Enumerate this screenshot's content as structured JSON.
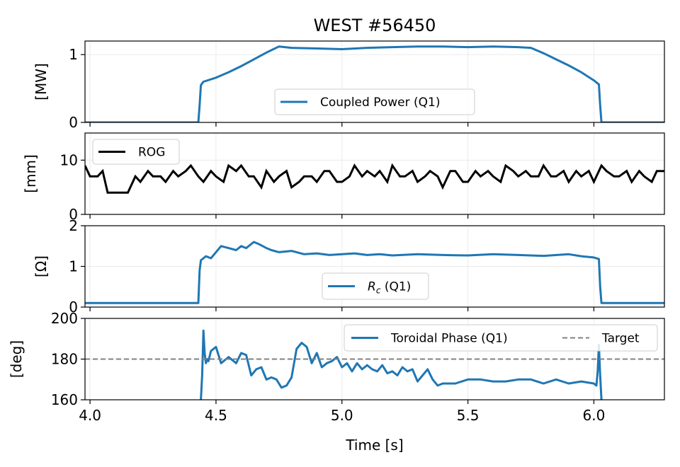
{
  "figure": {
    "title": "WEST #56450",
    "xlabel": "Time [s]"
  },
  "chart_data": [
    {
      "type": "line",
      "ylabel": "[MW]",
      "xlim": [
        3.98,
        6.28
      ],
      "ylim": [
        0,
        1.2
      ],
      "yticks": [
        "0",
        "1"
      ],
      "ytick_values": [
        0,
        1
      ],
      "grid": true,
      "legend": {
        "placement": "lower-center",
        "entries": [
          {
            "label": "Coupled Power (Q1)",
            "color": "#1f77b4",
            "style": "solid"
          }
        ]
      },
      "series": [
        {
          "name": "Coupled Power (Q1)",
          "color": "#1f77b4",
          "x": [
            3.98,
            4.43,
            4.435,
            4.44,
            4.45,
            4.5,
            4.55,
            4.6,
            4.65,
            4.7,
            4.75,
            4.8,
            4.9,
            5.0,
            5.1,
            5.2,
            5.3,
            5.4,
            5.5,
            5.6,
            5.7,
            5.75,
            5.8,
            5.85,
            5.9,
            5.95,
            6.0,
            6.02,
            6.025,
            6.03,
            6.28
          ],
          "y": [
            0,
            0,
            0.25,
            0.55,
            0.6,
            0.66,
            0.74,
            0.83,
            0.93,
            1.03,
            1.12,
            1.1,
            1.09,
            1.08,
            1.1,
            1.11,
            1.12,
            1.12,
            1.11,
            1.12,
            1.11,
            1.1,
            1.02,
            0.93,
            0.84,
            0.74,
            0.62,
            0.56,
            0.25,
            0,
            0
          ]
        }
      ]
    },
    {
      "type": "line",
      "ylabel": "[mm]",
      "xlim": [
        3.98,
        6.28
      ],
      "ylim": [
        0,
        15
      ],
      "yticks": [
        "0",
        "10"
      ],
      "ytick_values": [
        0,
        10
      ],
      "grid": true,
      "legend": {
        "placement": "top-left",
        "entries": [
          {
            "label": "ROG",
            "color": "#000000",
            "style": "solid"
          }
        ]
      },
      "series": [
        {
          "name": "ROG",
          "color": "#000000",
          "x": [
            3.98,
            4.0,
            4.03,
            4.05,
            4.07,
            4.1,
            4.15,
            4.18,
            4.2,
            4.23,
            4.25,
            4.28,
            4.3,
            4.33,
            4.35,
            4.38,
            4.4,
            4.43,
            4.45,
            4.48,
            4.5,
            4.53,
            4.55,
            4.58,
            4.6,
            4.63,
            4.65,
            4.68,
            4.7,
            4.73,
            4.75,
            4.78,
            4.8,
            4.83,
            4.85,
            4.88,
            4.9,
            4.93,
            4.95,
            4.98,
            5.0,
            5.03,
            5.05,
            5.08,
            5.1,
            5.13,
            5.15,
            5.18,
            5.2,
            5.23,
            5.25,
            5.28,
            5.3,
            5.33,
            5.35,
            5.38,
            5.4,
            5.43,
            5.45,
            5.48,
            5.5,
            5.53,
            5.55,
            5.58,
            5.6,
            5.63,
            5.65,
            5.68,
            5.7,
            5.73,
            5.75,
            5.78,
            5.8,
            5.83,
            5.85,
            5.88,
            5.9,
            5.93,
            5.95,
            5.98,
            6.0,
            6.03,
            6.05,
            6.08,
            6.1,
            6.13,
            6.15,
            6.18,
            6.2,
            6.23,
            6.25,
            6.28
          ],
          "y": [
            9,
            7,
            7,
            8,
            4,
            4,
            4,
            7,
            6,
            8,
            7,
            7,
            6,
            8,
            7,
            8,
            9,
            7,
            6,
            8,
            7,
            6,
            9,
            8,
            9,
            7,
            7,
            5,
            8,
            6,
            7,
            8,
            5,
            6,
            7,
            7,
            6,
            8,
            8,
            6,
            6,
            7,
            9,
            7,
            8,
            7,
            8,
            6,
            9,
            7,
            7,
            8,
            6,
            7,
            8,
            7,
            5,
            8,
            8,
            6,
            6,
            8,
            7,
            8,
            7,
            6,
            9,
            8,
            7,
            8,
            7,
            7,
            9,
            7,
            7,
            8,
            6,
            8,
            7,
            8,
            6,
            9,
            8,
            7,
            7,
            8,
            6,
            8,
            7,
            6,
            8,
            8
          ]
        }
      ]
    },
    {
      "type": "line",
      "ylabel": "[Ω]",
      "xlim": [
        3.98,
        6.28
      ],
      "ylim": [
        0,
        2
      ],
      "yticks": [
        "0",
        "1",
        "2"
      ],
      "ytick_values": [
        0,
        1,
        2
      ],
      "grid": true,
      "legend": {
        "placement": "lower-center",
        "entries": [
          {
            "label": "R",
            "label_subscript": "c",
            "label_suffix": " (Q1)",
            "color": "#1f77b4",
            "style": "solid"
          }
        ]
      },
      "series": [
        {
          "name": "Rc (Q1)",
          "color": "#1f77b4",
          "x": [
            3.98,
            4.43,
            4.435,
            4.44,
            4.46,
            4.48,
            4.5,
            4.52,
            4.55,
            4.58,
            4.6,
            4.62,
            4.65,
            4.67,
            4.7,
            4.72,
            4.75,
            4.8,
            4.85,
            4.9,
            4.95,
            5.0,
            5.05,
            5.1,
            5.15,
            5.2,
            5.3,
            5.4,
            5.5,
            5.6,
            5.7,
            5.8,
            5.9,
            5.95,
            6.0,
            6.02,
            6.025,
            6.03,
            6.28
          ],
          "y": [
            0.1,
            0.1,
            0.9,
            1.15,
            1.25,
            1.2,
            1.35,
            1.5,
            1.45,
            1.4,
            1.5,
            1.45,
            1.6,
            1.55,
            1.45,
            1.4,
            1.35,
            1.38,
            1.3,
            1.32,
            1.28,
            1.3,
            1.32,
            1.28,
            1.3,
            1.27,
            1.3,
            1.28,
            1.27,
            1.3,
            1.28,
            1.26,
            1.3,
            1.25,
            1.22,
            1.18,
            0.5,
            0.1,
            0.1
          ]
        }
      ]
    },
    {
      "type": "line",
      "ylabel": "[deg]",
      "xlim": [
        3.98,
        6.28
      ],
      "ylim": [
        160,
        200
      ],
      "yticks": [
        "160",
        "180",
        "200"
      ],
      "ytick_values": [
        160,
        180,
        200
      ],
      "xticks": [
        "4.0",
        "4.5",
        "5.0",
        "5.5",
        "6.0"
      ],
      "xtick_values": [
        4.0,
        4.5,
        5.0,
        5.5,
        6.0
      ],
      "grid": true,
      "legend": {
        "placement": "top-right",
        "entries": [
          {
            "label": "Toroidal Phase (Q1)",
            "color": "#1f77b4",
            "style": "solid"
          },
          {
            "label": "Target",
            "color": "#808080",
            "style": "dashed"
          }
        ]
      },
      "series": [
        {
          "name": "Toroidal Phase (Q1)",
          "color": "#1f77b4",
          "x": [
            4.44,
            4.445,
            4.45,
            4.455,
            4.46,
            4.465,
            4.47,
            4.48,
            4.5,
            4.52,
            4.55,
            4.58,
            4.6,
            4.62,
            4.64,
            4.66,
            4.68,
            4.7,
            4.72,
            4.74,
            4.76,
            4.78,
            4.8,
            4.82,
            4.84,
            4.86,
            4.88,
            4.9,
            4.92,
            4.94,
            4.96,
            4.98,
            5.0,
            5.02,
            5.04,
            5.06,
            5.08,
            5.1,
            5.12,
            5.14,
            5.16,
            5.18,
            5.2,
            5.22,
            5.24,
            5.26,
            5.28,
            5.3,
            5.32,
            5.34,
            5.36,
            5.38,
            5.4,
            5.45,
            5.5,
            5.55,
            5.6,
            5.65,
            5.7,
            5.75,
            5.8,
            5.85,
            5.9,
            5.95,
            6.0,
            6.01,
            6.015,
            6.02,
            6.025,
            6.03
          ],
          "y": [
            160,
            172,
            194,
            183,
            178,
            180,
            179,
            184,
            186,
            178,
            181,
            178,
            183,
            182,
            172,
            175,
            176,
            170,
            171,
            170,
            166,
            167,
            171,
            185,
            188,
            186,
            178,
            183,
            176,
            178,
            179,
            181,
            176,
            178,
            174,
            178,
            175,
            177,
            175,
            174,
            177,
            173,
            174,
            172,
            176,
            174,
            175,
            169,
            172,
            175,
            170,
            167,
            168,
            168,
            170,
            170,
            169,
            169,
            170,
            170,
            168,
            170,
            168,
            169,
            168,
            167,
            174,
            187,
            172,
            160
          ]
        },
        {
          "name": "Target",
          "color": "#808080",
          "style": "dashed",
          "x": [
            3.98,
            6.28
          ],
          "y": [
            180,
            180
          ]
        }
      ]
    }
  ]
}
